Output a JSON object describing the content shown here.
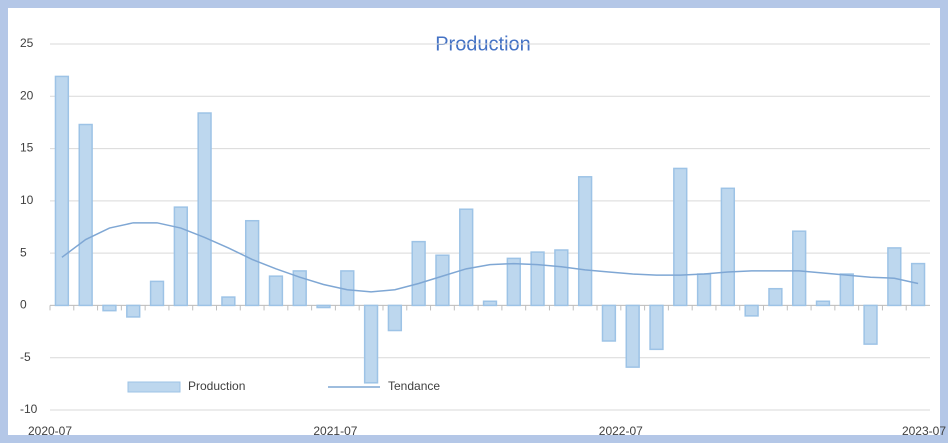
{
  "chart_data": {
    "type": "bar",
    "title": "Production",
    "categories": [
      "2020-07",
      null,
      null,
      null,
      null,
      null,
      null,
      null,
      null,
      null,
      null,
      null,
      "2021-07",
      null,
      null,
      null,
      null,
      null,
      null,
      null,
      null,
      null,
      null,
      null,
      "2022-07",
      null,
      null,
      null,
      null,
      null,
      null,
      null,
      null,
      null,
      null,
      null,
      "2023-07"
    ],
    "series": [
      {
        "name": "Production",
        "type": "bar",
        "color": "#bdd7ee",
        "values": [
          21.9,
          17.3,
          -0.5,
          -1.1,
          2.3,
          9.4,
          18.4,
          0.8,
          8.1,
          2.8,
          3.3,
          -0.2,
          3.3,
          -7.4,
          -2.4,
          6.1,
          4.8,
          9.2,
          0.4,
          4.5,
          5.1,
          5.3,
          12.3,
          -3.4,
          -5.9,
          -4.2,
          13.1,
          3.0,
          11.2,
          -1.0,
          1.6,
          7.1,
          0.4,
          3.0,
          -3.7,
          5.5,
          4.0
        ]
      },
      {
        "name": "Tendance",
        "type": "line",
        "color": "#7fa7d4",
        "values": [
          4.6,
          6.3,
          7.4,
          7.9,
          7.9,
          7.4,
          6.5,
          5.5,
          4.4,
          3.5,
          2.7,
          2.0,
          1.5,
          1.3,
          1.5,
          2.1,
          2.8,
          3.5,
          3.9,
          4.0,
          3.9,
          3.7,
          3.4,
          3.2,
          3.0,
          2.9,
          2.9,
          3.0,
          3.2,
          3.3,
          3.3,
          3.3,
          3.1,
          2.9,
          2.7,
          2.6,
          2.1
        ]
      }
    ],
    "ylim": [
      -10,
      25
    ],
    "yticks": [
      -10,
      -5,
      0,
      5,
      10,
      15,
      20,
      25
    ],
    "grid": true
  }
}
